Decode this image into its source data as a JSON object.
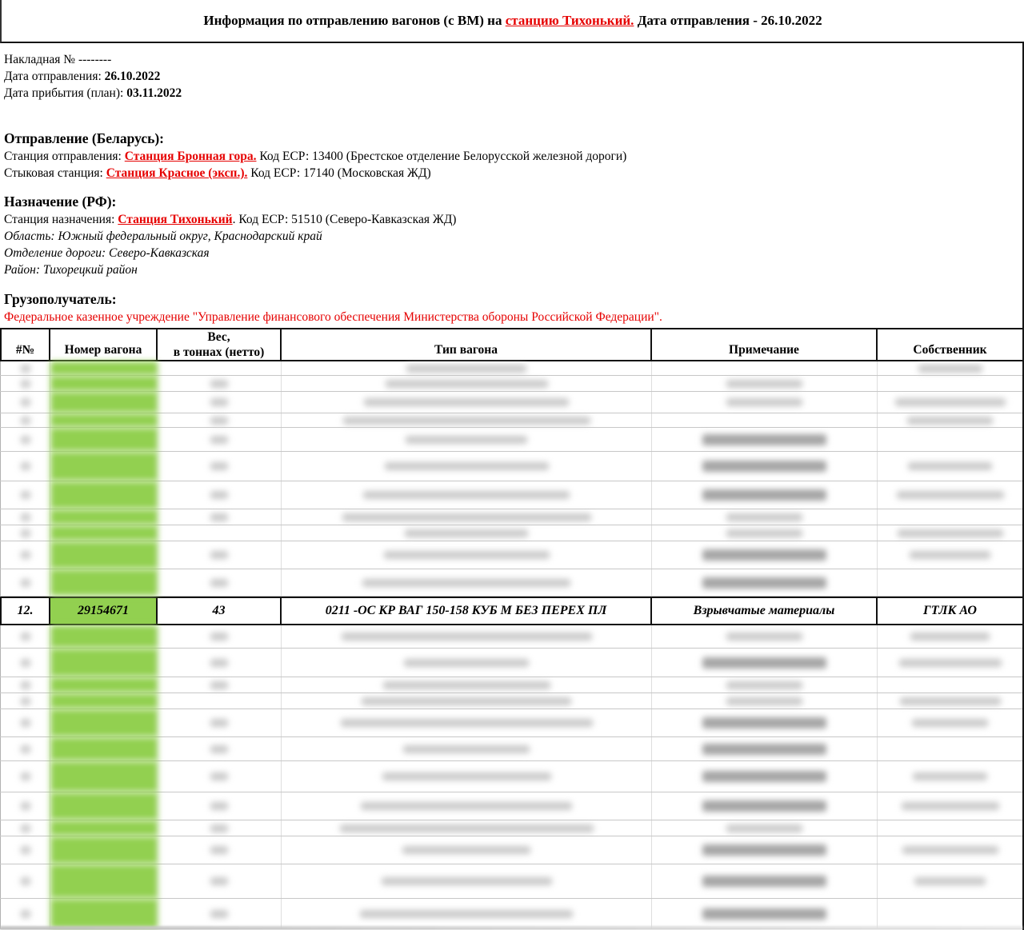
{
  "title": {
    "prefix": "Информация по отправлению вагонов (с ВМ) на ",
    "station_link": "станцию Тихонький.",
    "suffix": " Дата отправления - 26.10.2022"
  },
  "waybill": {
    "number_line": "Накладная № --------",
    "departure_label": "Дата отправления: ",
    "departure_date": "26.10.2022",
    "arrival_label": "Дата прибытия (план): ",
    "arrival_date": "03.11.2022"
  },
  "origin": {
    "heading": "Отправление (Беларусь):",
    "departure_station_label": "Станция отправления: ",
    "departure_station": "Станция Бронная гора.",
    "departure_station_rest": " Код ЕСР: 13400 (Брестское отделение Белорусской железной дороги)",
    "junction_label": "Стыковая станция: ",
    "junction_station": "Станция Красное (эксп.).",
    "junction_rest": " Код ЕСР: 17140 (Московская ЖД)"
  },
  "destination": {
    "heading": "Назначение (РФ):",
    "station_label": "Станция назначения: ",
    "station": "Станция Тихонький",
    "station_rest": ". Код ЕСР: 51510 (Северо-Кавказская ЖД)",
    "region": "Область: Южный федеральный округ, Краснодарский край",
    "division": "Отделение дороги: Северо-Кавказская",
    "district": "Район: Тихорецкий район"
  },
  "consignee": {
    "heading": "Грузополучатель:",
    "name": "Федеральное казенное учреждение \"Управление финансового обеспечения Министерства обороны Российской Федерации\"."
  },
  "table": {
    "headers": {
      "num": "#№",
      "wagon": "Номер вагона",
      "weight": "Вес,\nв тоннах (нетто)",
      "type": "Тип вагона",
      "note": "Примечание",
      "owner": "Собственник"
    },
    "visible_row": {
      "num": "12.",
      "wagon_number": "29154671",
      "weight": "43",
      "wagon_type": "0211 -ОС КР ВАГ 150-158 КУБ М БЕЗ ПЕРЕХ ПЛ",
      "note": "Взрывчатые материалы",
      "owner": "ГТЛК АО"
    },
    "redacted_rows_above": 11,
    "redacted_rows_below": 12
  },
  "colors": {
    "wagon_highlight_green": "#92d050",
    "accent_red": "#e60000"
  }
}
